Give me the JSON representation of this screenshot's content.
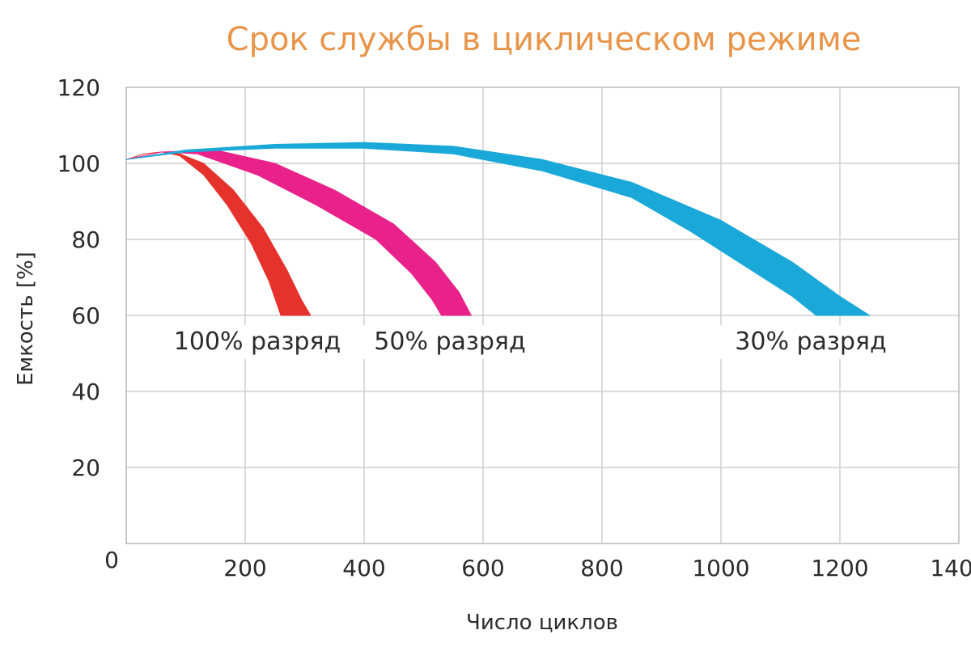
{
  "chart_data": {
    "type": "area",
    "title": "Срок службы в циклическом режиме",
    "xlabel": "Число циклов",
    "ylabel": "Емкость [%]",
    "xlim": [
      0,
      1400
    ],
    "ylim": [
      0,
      120
    ],
    "x_ticks": [
      "200",
      "400",
      "600",
      "800",
      "1000",
      "1200",
      "1400"
    ],
    "y_ticks": [
      "20",
      "40",
      "60",
      "80",
      "100",
      "120"
    ],
    "origin_label": "0",
    "grid": true,
    "series": [
      {
        "name": "100% разряд",
        "color": "#e5322c",
        "upper": [
          [
            0,
            101
          ],
          [
            30,
            102.5
          ],
          [
            60,
            103
          ],
          [
            90,
            102.5
          ],
          [
            130,
            100
          ],
          [
            180,
            93
          ],
          [
            230,
            83
          ],
          [
            270,
            72
          ],
          [
            295,
            64
          ],
          [
            310,
            60
          ]
        ],
        "lower": [
          [
            0,
            101
          ],
          [
            30,
            102.5
          ],
          [
            60,
            103
          ],
          [
            90,
            102
          ],
          [
            130,
            97
          ],
          [
            170,
            89
          ],
          [
            210,
            79
          ],
          [
            240,
            69
          ],
          [
            260,
            60
          ]
        ]
      },
      {
        "name": "50% разряд",
        "color": "#e8228a",
        "upper": [
          [
            0,
            101
          ],
          [
            60,
            103
          ],
          [
            150,
            103.5
          ],
          [
            250,
            100
          ],
          [
            350,
            93
          ],
          [
            450,
            84
          ],
          [
            520,
            74
          ],
          [
            560,
            66
          ],
          [
            580,
            60
          ]
        ],
        "lower": [
          [
            0,
            101
          ],
          [
            60,
            103
          ],
          [
            120,
            102.5
          ],
          [
            220,
            97
          ],
          [
            320,
            89
          ],
          [
            420,
            80
          ],
          [
            480,
            71
          ],
          [
            515,
            64
          ],
          [
            530,
            60
          ]
        ]
      },
      {
        "name": "30% разряд",
        "color": "#1aa8d8",
        "upper": [
          [
            0,
            101
          ],
          [
            100,
            103.5
          ],
          [
            250,
            105
          ],
          [
            400,
            105.5
          ],
          [
            550,
            104.5
          ],
          [
            700,
            101
          ],
          [
            850,
            95
          ],
          [
            1000,
            85
          ],
          [
            1120,
            74
          ],
          [
            1200,
            65
          ],
          [
            1250,
            60
          ]
        ],
        "lower": [
          [
            0,
            101
          ],
          [
            100,
            103
          ],
          [
            250,
            104
          ],
          [
            400,
            104
          ],
          [
            550,
            102.5
          ],
          [
            700,
            98
          ],
          [
            850,
            91
          ],
          [
            950,
            82
          ],
          [
            1050,
            72
          ],
          [
            1120,
            65
          ],
          [
            1160,
            60
          ]
        ]
      }
    ]
  }
}
